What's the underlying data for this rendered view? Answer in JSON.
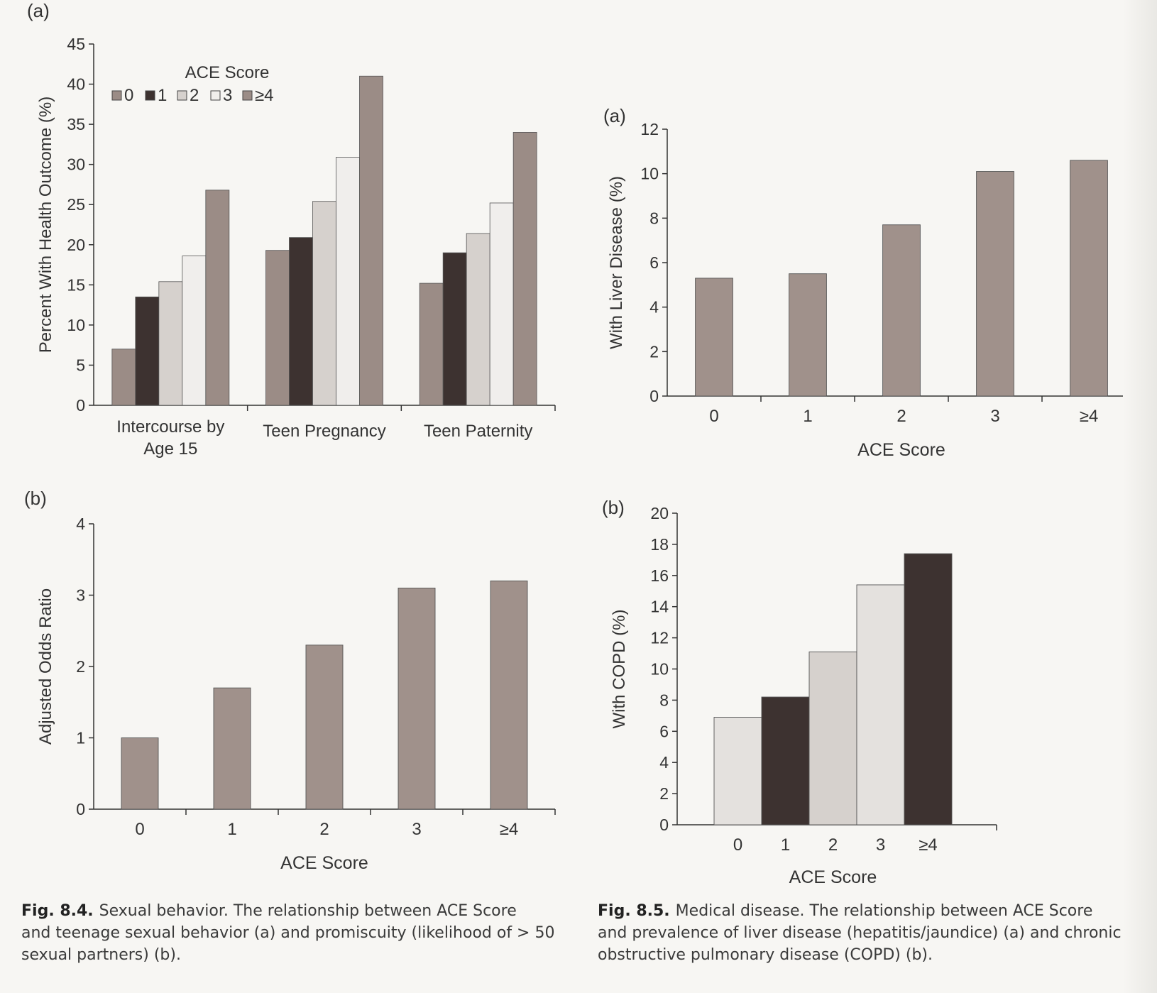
{
  "colors": {
    "ace0": "#9b8c86",
    "ace1": "#3d3230",
    "ace2": "#d6d1cd",
    "ace3": "#f0eeec",
    "ace4": "#9b8c86",
    "liver": "#a0918b",
    "odds": "#a0918b",
    "copd": [
      "#e4e1de",
      "#3d3230",
      "#d6d1cd",
      "#e4e1de",
      "#3d3230"
    ],
    "axis": "#333333"
  },
  "captions": {
    "fig84": {
      "label": "Fig. 8.4.",
      "lines": [
        "Sexual behavior. The relationship between ACE Score",
        "and teenage sexual behavior (a) and promiscuity (likelihood of > 50",
        "sexual partners) (b)."
      ]
    },
    "fig85": {
      "label": "Fig. 8.5.",
      "lines": [
        "Medical disease. The relationship between ACE Score",
        "and prevalence of liver disease (hepatitis/jaundice) (a) and chronic",
        "obstructive pulmonary disease (COPD) (b)."
      ]
    }
  },
  "chart_data": [
    {
      "id": "c1",
      "panel_label": "(a)",
      "type": "bar",
      "ylabel": "Percent With Health Outcome (%)",
      "xlabel": "",
      "ylim": [
        0,
        45
      ],
      "yticks": [
        "0",
        "5",
        "10",
        "15",
        "20",
        "25",
        "30",
        "35",
        "40",
        "45"
      ],
      "legend": {
        "title": "ACE Score",
        "position": "top-left",
        "entries": [
          "0",
          "1",
          "2",
          "3",
          "≥4"
        ]
      },
      "categories": [
        [
          "Intercourse by",
          "Age 15"
        ],
        [
          "Teen Pregnancy"
        ],
        [
          "Teen Paternity"
        ]
      ],
      "series": [
        {
          "name": "0",
          "values": [
            7,
            19.3,
            15.2
          ]
        },
        {
          "name": "1",
          "values": [
            13.5,
            20.9,
            19
          ]
        },
        {
          "name": "2",
          "values": [
            15.4,
            25.4,
            21.4
          ]
        },
        {
          "name": "3",
          "values": [
            18.6,
            30.9,
            25.2
          ]
        },
        {
          "name": "≥4",
          "values": [
            26.8,
            41,
            34
          ]
        }
      ]
    },
    {
      "id": "c2",
      "panel_label": "(b)",
      "type": "bar",
      "ylabel": "Adjusted Odds Ratio",
      "xlabel": "ACE Score",
      "ylim": [
        0,
        4
      ],
      "yticks": [
        "0",
        "1",
        "2",
        "3",
        "4"
      ],
      "categories": [
        "0",
        "1",
        "2",
        "3",
        "≥4"
      ],
      "values": [
        1,
        1.7,
        2.3,
        3.1,
        3.2
      ]
    },
    {
      "id": "c3",
      "panel_label": "(a)",
      "type": "bar",
      "ylabel": "With Liver Disease (%)",
      "xlabel": "ACE Score",
      "ylim": [
        0,
        12
      ],
      "yticks": [
        "0",
        "2",
        "4",
        "6",
        "8",
        "10",
        "12"
      ],
      "categories": [
        "0",
        "1",
        "2",
        "3",
        "≥4"
      ],
      "values": [
        5.3,
        5.5,
        7.7,
        10.1,
        10.6
      ]
    },
    {
      "id": "c4",
      "panel_label": "(b)",
      "type": "bar",
      "ylabel": "With COPD (%)",
      "xlabel": "ACE Score",
      "ylim": [
        0,
        20
      ],
      "yticks": [
        "0",
        "2",
        "4",
        "6",
        "8",
        "10",
        "12",
        "14",
        "16",
        "18",
        "20"
      ],
      "categories": [
        "0",
        "1",
        "2",
        "3",
        "≥4"
      ],
      "values": [
        6.9,
        8.2,
        11.1,
        15.4,
        17.4
      ]
    }
  ]
}
